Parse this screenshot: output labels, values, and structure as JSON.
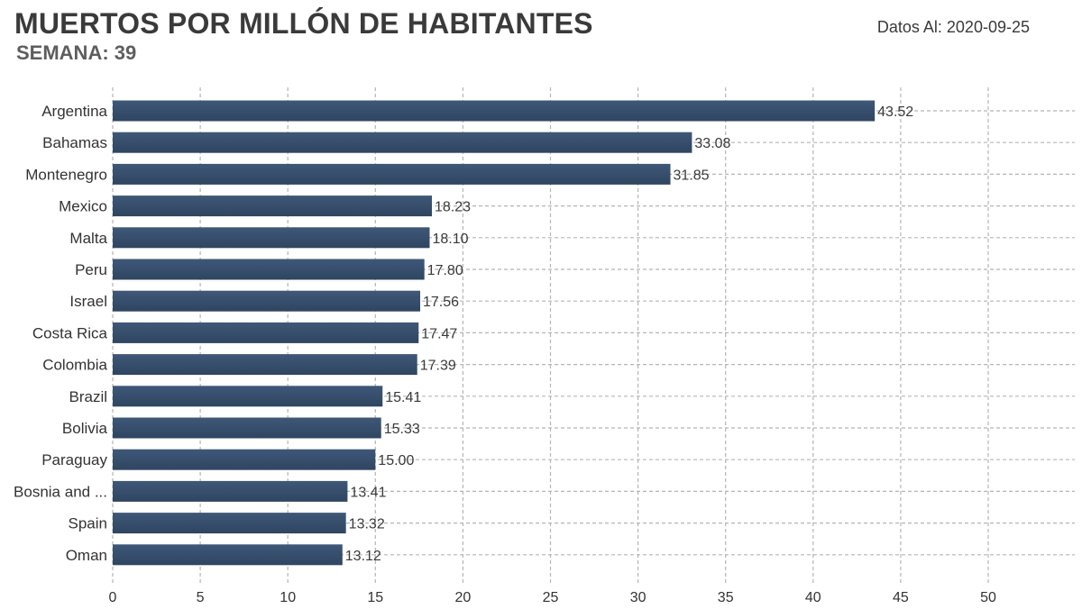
{
  "header": {
    "title": "MUERTOS POR MILLÓN DE HABITANTES",
    "subtitle": "SEMANA: 39",
    "date_label": "Datos Al: 2020-09-25"
  },
  "chart_data": {
    "type": "bar",
    "orientation": "horizontal",
    "title": "MUERTOS POR MILLÓN DE HABITANTES",
    "subtitle": "SEMANA: 39",
    "xlabel": "",
    "ylabel": "",
    "xlim": [
      0,
      55
    ],
    "xticks": [
      0,
      5,
      10,
      15,
      20,
      25,
      30,
      35,
      40,
      45,
      50
    ],
    "grid": true,
    "legend": "none",
    "bar_color": "#2f4561",
    "grid_color": "#b5b5b5",
    "categories": [
      "Argentina",
      "Bahamas",
      "Montenegro",
      "Mexico",
      "Malta",
      "Peru",
      "Israel",
      "Costa Rica",
      "Colombia",
      "Brazil",
      "Bolivia",
      "Paraguay",
      "Bosnia and ...",
      "Spain",
      "Oman"
    ],
    "values": [
      43.52,
      33.08,
      31.85,
      18.23,
      18.1,
      17.8,
      17.56,
      17.47,
      17.39,
      15.41,
      15.33,
      15.0,
      13.41,
      13.32,
      13.12
    ],
    "value_labels": [
      "43.52",
      "33.08",
      "31.85",
      "18.23",
      "18.10",
      "17.80",
      "17.56",
      "17.47",
      "17.39",
      "15.41",
      "15.33",
      "15.00",
      "13.41",
      "13.32",
      "13.12"
    ]
  }
}
